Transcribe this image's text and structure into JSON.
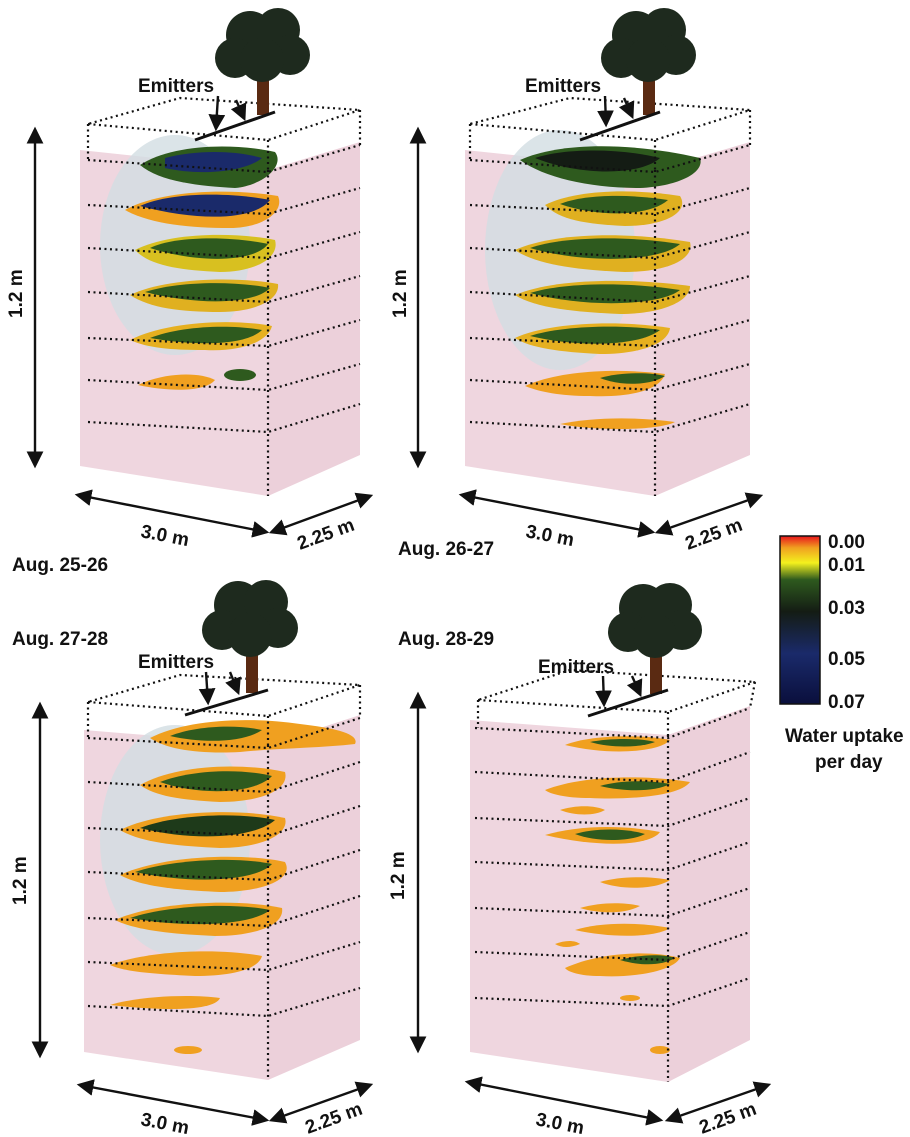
{
  "emitters_label": "Emitters",
  "dimensions": {
    "height": "1.2 m",
    "length": "3.0 m",
    "width": "2.25 m"
  },
  "panels": [
    {
      "date": "Aug. 25-26"
    },
    {
      "date": "Aug. 26-27"
    },
    {
      "date": "Aug. 27-28"
    },
    {
      "date": "Aug. 28-29"
    }
  ],
  "legend": {
    "title_line1": "Water uptake",
    "title_line2": "per day",
    "ticks": [
      "0.00",
      "0.01",
      "0.03",
      "0.05",
      "0.07"
    ],
    "colors": [
      "#e8141c",
      "#f0a020",
      "#f3f11e",
      "#2e5a1e",
      "#141c14",
      "#1a2a6a",
      "#0a0f3c"
    ]
  },
  "colors": {
    "soil": "#efd6df",
    "wet": "#d4dee2",
    "tree": "#1e2a1e",
    "trunk": "#5a2a12"
  }
}
